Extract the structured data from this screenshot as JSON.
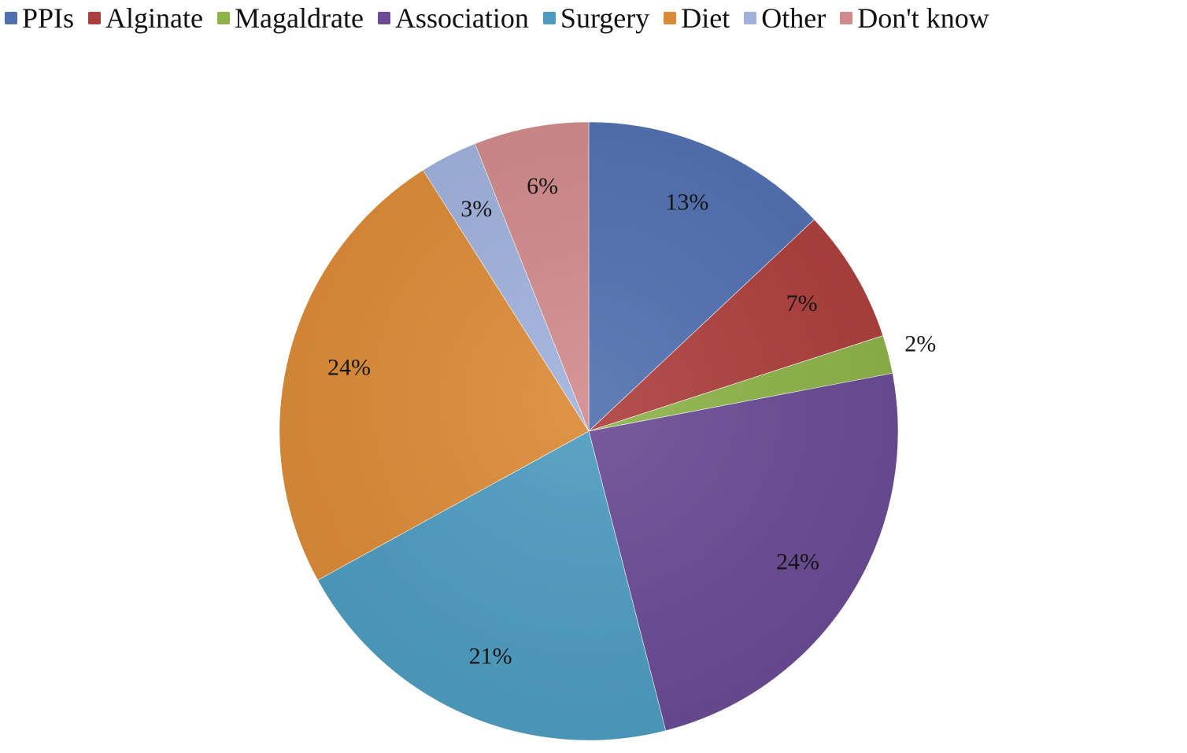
{
  "chart_data": {
    "type": "pie",
    "title": "",
    "legend_position": "top",
    "start_angle": "12 o'clock",
    "direction": "clockwise",
    "slices": [
      {
        "name": "PPIs",
        "value": 13,
        "label": "13%",
        "color": "#4f6fb0"
      },
      {
        "name": "Alginate",
        "value": 7,
        "label": "7%",
        "color": "#ac3e3b"
      },
      {
        "name": "Magaldrate",
        "value": 2,
        "label": "2%",
        "color": "#8db349"
      },
      {
        "name": "Association",
        "value": 24,
        "label": "24%",
        "color": "#6a4b94"
      },
      {
        "name": "Surgery",
        "value": 21,
        "label": "21%",
        "color": "#4d9cc0"
      },
      {
        "name": "Diet",
        "value": 24,
        "label": "24%",
        "color": "#dc8a36"
      },
      {
        "name": "Other",
        "value": 3,
        "label": "3%",
        "color": "#9fb1dc"
      },
      {
        "name": "Don't know",
        "value": 6,
        "label": "6%",
        "color": "#d1898a"
      }
    ]
  }
}
